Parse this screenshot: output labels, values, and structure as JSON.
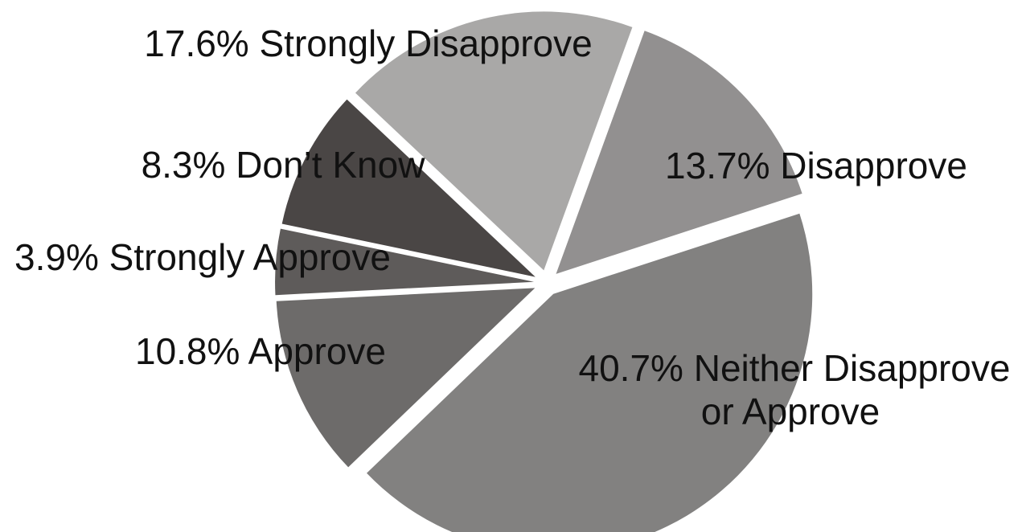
{
  "chart_data": {
    "type": "pie",
    "title": "",
    "slices": [
      {
        "label": "Disapprove",
        "value": 13.7,
        "display": "13.7% Disapprove",
        "color": "#929090"
      },
      {
        "label": "Neither Disapprove or Approve",
        "value": 40.7,
        "display": "40.7% Neither Disapprove",
        "display2": "or Approve",
        "color": "#828180"
      },
      {
        "label": "Approve",
        "value": 10.8,
        "display": "10.8% Approve",
        "color": "#6d6b6a"
      },
      {
        "label": "Strongly Approve",
        "value": 3.9,
        "display": "3.9% Strongly Approve",
        "color": "#5e5b5a"
      },
      {
        "label": "Don't Know",
        "value": 8.3,
        "display": "8.3% Don’t Know",
        "color": "#4a4645"
      },
      {
        "label": "Strongly Disapprove",
        "value": 17.6,
        "display": "17.6% Strongly Disapprove",
        "color": "#a9a8a7"
      }
    ],
    "exploded": true,
    "legend": "none"
  }
}
